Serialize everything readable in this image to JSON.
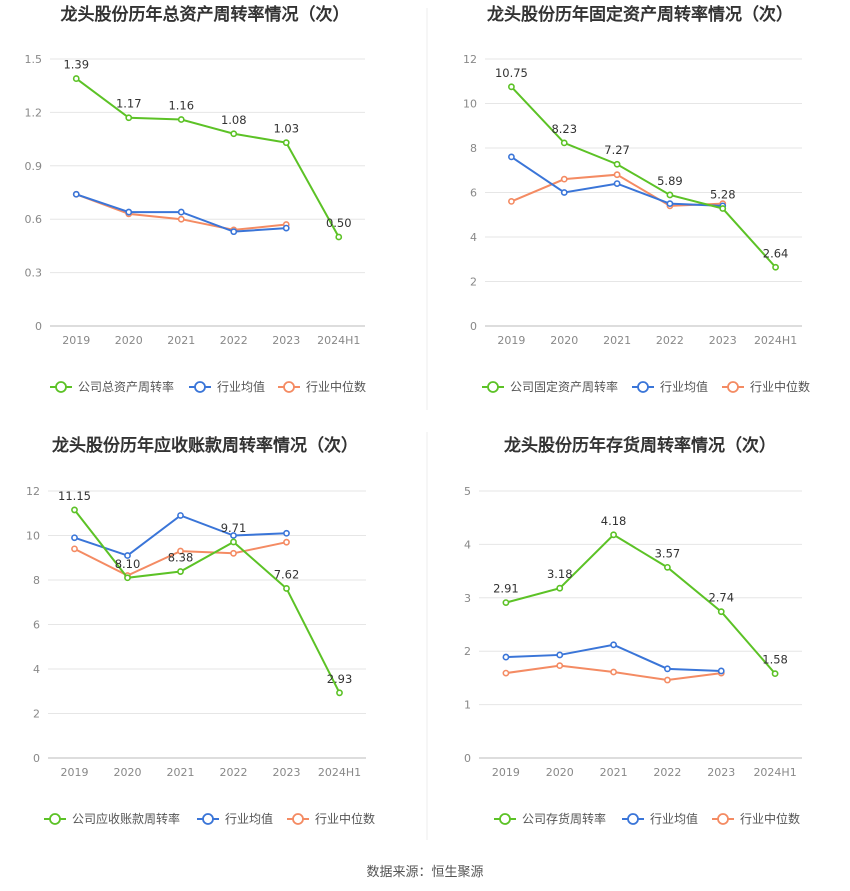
{
  "source": "数据来源：恒生聚源",
  "legend_common": [
    "行业均值",
    "行业中位数"
  ],
  "colors": {
    "company": "#5cc226",
    "mean": "#3a75d8",
    "median": "#f48b63"
  },
  "chart_data": [
    {
      "type": "line",
      "title": "龙头股份历年总资产周转率情况（次）",
      "categories": [
        "2019",
        "2020",
        "2021",
        "2022",
        "2023",
        "2024H1"
      ],
      "ylim": [
        0,
        1.5
      ],
      "yticks": [
        "0",
        "0.3",
        "0.6",
        "0.9",
        "1.2",
        "1.5"
      ],
      "series": [
        {
          "name": "公司总资产周转率",
          "values": [
            1.39,
            1.17,
            1.16,
            1.08,
            1.03,
            0.5
          ],
          "labels": [
            "1.39",
            "1.17",
            "1.16",
            "1.08",
            "1.03",
            "0.50"
          ]
        },
        {
          "name": "行业均值",
          "values": [
            0.74,
            0.64,
            0.64,
            0.53,
            0.55,
            null
          ]
        },
        {
          "name": "行业中位数",
          "values": [
            0.74,
            0.63,
            0.6,
            0.54,
            0.57,
            null
          ]
        }
      ]
    },
    {
      "type": "line",
      "title": "龙头股份历年固定资产周转率情况（次）",
      "categories": [
        "2019",
        "2020",
        "2021",
        "2022",
        "2023",
        "2024H1"
      ],
      "ylim": [
        0,
        12
      ],
      "yticks": [
        "0",
        "2",
        "4",
        "6",
        "8",
        "10",
        "12"
      ],
      "series": [
        {
          "name": "公司固定资产周转率",
          "values": [
            10.75,
            8.23,
            7.27,
            5.89,
            5.28,
            2.64
          ],
          "labels": [
            "10.75",
            "8.23",
            "7.27",
            "5.89",
            "5.28",
            "2.64"
          ]
        },
        {
          "name": "行业均值",
          "values": [
            7.6,
            6.0,
            6.4,
            5.5,
            5.4,
            null
          ]
        },
        {
          "name": "行业中位数",
          "values": [
            5.6,
            6.6,
            6.8,
            5.4,
            5.5,
            null
          ]
        }
      ]
    },
    {
      "type": "line",
      "title": "龙头股份历年应收账款周转率情况（次）",
      "categories": [
        "2019",
        "2020",
        "2021",
        "2022",
        "2023",
        "2024H1"
      ],
      "ylim": [
        0,
        12
      ],
      "yticks": [
        "0",
        "2",
        "4",
        "6",
        "8",
        "10",
        "12"
      ],
      "series": [
        {
          "name": "公司应收账款周转率",
          "values": [
            11.15,
            8.1,
            8.38,
            9.71,
            7.62,
            2.93
          ],
          "labels": [
            "11.15",
            "8.10",
            "8.38",
            "9.71",
            "7.62",
            "2.93"
          ]
        },
        {
          "name": "行业均值",
          "values": [
            9.9,
            9.1,
            10.9,
            10.0,
            10.1,
            null
          ]
        },
        {
          "name": "行业中位数",
          "values": [
            9.4,
            8.2,
            9.3,
            9.2,
            9.7,
            null
          ]
        }
      ]
    },
    {
      "type": "line",
      "title": "龙头股份历年存货周转率情况（次）",
      "categories": [
        "2019",
        "2020",
        "2021",
        "2022",
        "2023",
        "2024H1"
      ],
      "ylim": [
        0,
        5
      ],
      "yticks": [
        "0",
        "1",
        "2",
        "3",
        "4",
        "5"
      ],
      "series": [
        {
          "name": "公司存货周转率",
          "values": [
            2.91,
            3.18,
            4.18,
            3.57,
            2.74,
            1.58
          ],
          "labels": [
            "2.91",
            "3.18",
            "4.18",
            "3.57",
            "2.74",
            "1.58"
          ]
        },
        {
          "name": "行业均值",
          "values": [
            1.89,
            1.93,
            2.12,
            1.67,
            1.63,
            null
          ]
        },
        {
          "name": "行业中位数",
          "values": [
            1.59,
            1.73,
            1.61,
            1.46,
            1.59,
            null
          ]
        }
      ]
    }
  ]
}
